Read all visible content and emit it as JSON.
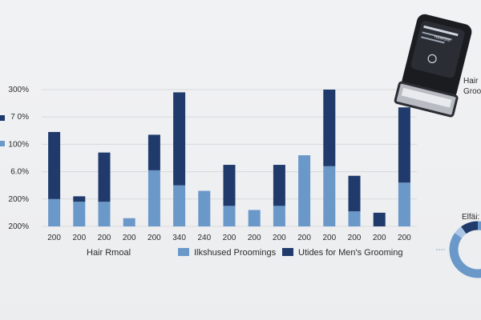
{
  "chart_data": {
    "type": "bar",
    "stacked": true,
    "y_tick_labels": [
      "200%",
      "200%",
      "6.0%",
      "100%",
      "7 0%",
      "300%"
    ],
    "categories": [
      "200",
      "200",
      "200",
      "200",
      "200",
      "340",
      "240",
      "200",
      "200",
      "200",
      "200",
      "200",
      "200",
      "200",
      "200"
    ],
    "series": [
      {
        "name": "Ilkshused Proomings",
        "color": "#6a98c9",
        "values": [
          1.0,
          0.9,
          0.9,
          0.3,
          2.05,
          1.5,
          1.3,
          0.75,
          0.6,
          0.75,
          2.6,
          2.2,
          0.55,
          0.0,
          1.6
        ]
      },
      {
        "name": "Utides for Men's Grooming",
        "color": "#1f3a6b",
        "values": [
          2.45,
          0.2,
          1.8,
          0.0,
          1.3,
          3.4,
          0.0,
          1.5,
          0.0,
          1.5,
          0.0,
          2.8,
          1.3,
          0.5,
          2.75
        ]
      }
    ],
    "ylim": [
      0,
      5
    ]
  },
  "left_legend": {
    "dark_color": "#1f3a6b",
    "light_color": "#6a98c9"
  },
  "legend": {
    "label_left": "Hair Rmoal",
    "item_light": "Ilkshused Proomings",
    "item_dark": "Utides for Men's Grooming"
  },
  "right_panel": {
    "device_text": "HAIRSIS",
    "hair_label_1": "Hair",
    "hair_label_2": "Groo",
    "donut_title": "Elfäi:",
    "donut_values": [
      0.85,
      0.05,
      0.1
    ],
    "donut_colors": [
      "#6a98c9",
      "#aac6e4",
      "#1f3a6b"
    ]
  }
}
